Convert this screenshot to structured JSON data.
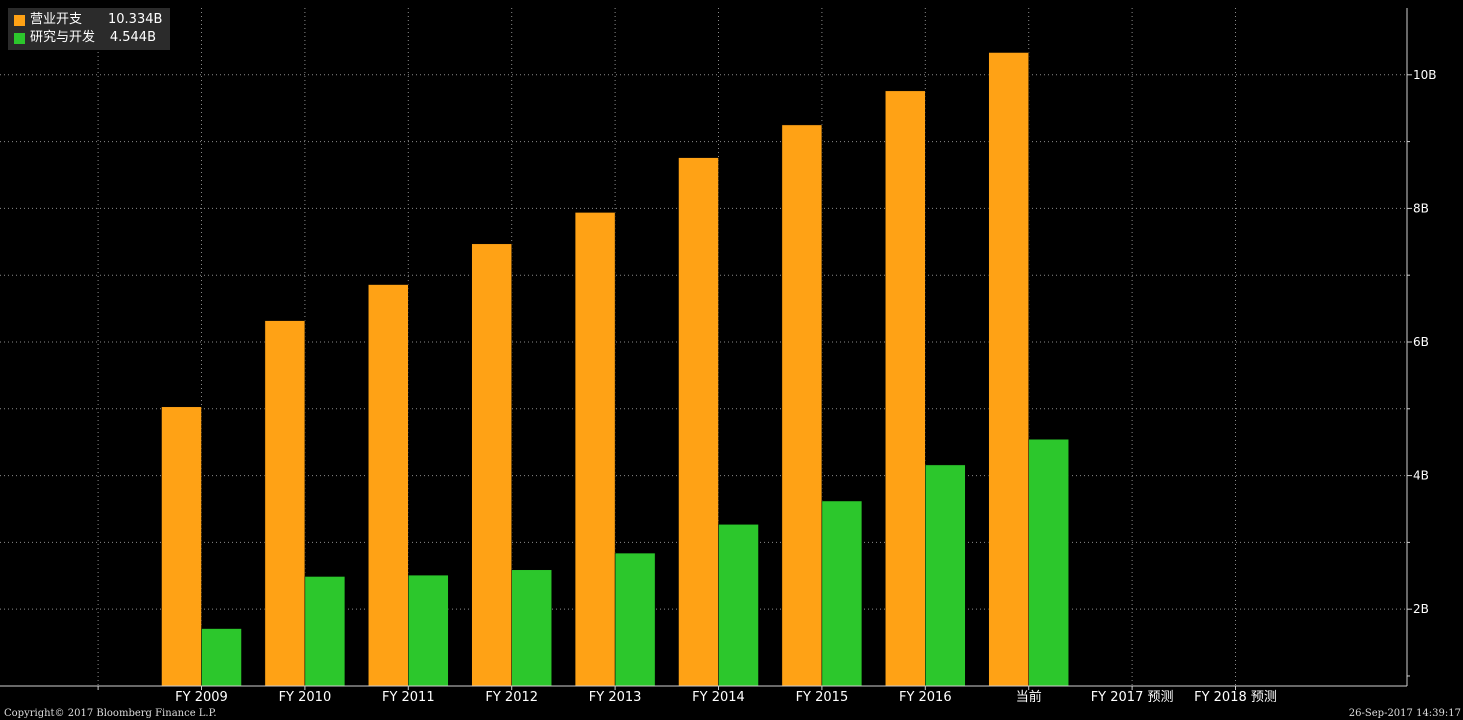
{
  "chart_data": {
    "type": "bar",
    "categories": [
      "FY 2009",
      "FY 2010",
      "FY 2011",
      "FY 2012",
      "FY 2013",
      "FY 2014",
      "FY 2015",
      "FY 2016",
      "当前",
      "FY 2017 预测",
      "FY 2018 预测"
    ],
    "series": [
      {
        "name": "营业开支",
        "color": "#ffa215",
        "values": [
          5.03,
          6.32,
          6.86,
          7.47,
          7.94,
          8.76,
          9.25,
          9.76,
          10.334,
          null,
          null
        ]
      },
      {
        "name": "研究与开发",
        "color": "#2cc72c",
        "values": [
          1.71,
          2.49,
          2.51,
          2.59,
          2.84,
          3.27,
          3.62,
          4.16,
          4.544,
          null,
          null
        ]
      }
    ],
    "y_ticks": [
      {
        "value": 2,
        "label": "2B"
      },
      {
        "value": 4,
        "label": "4B"
      },
      {
        "value": 6,
        "label": "6B"
      },
      {
        "value": 8,
        "label": "8B"
      },
      {
        "value": 10,
        "label": "10B"
      }
    ],
    "ylim": [
      0.85,
      11.0
    ],
    "y_unit": "B",
    "grid": true,
    "legend_position": "top-left",
    "background": "#000000"
  },
  "legend": {
    "items": [
      {
        "label": "营业开支",
        "value": "10.334B",
        "color": "#ffa215"
      },
      {
        "label": "研究与开发",
        "value": "4.544B",
        "color": "#2cc72c"
      }
    ]
  },
  "footer": {
    "copyright": "Copyright© 2017 Bloomberg Finance L.P.",
    "timestamp": "26-Sep-2017 14:39:17"
  }
}
